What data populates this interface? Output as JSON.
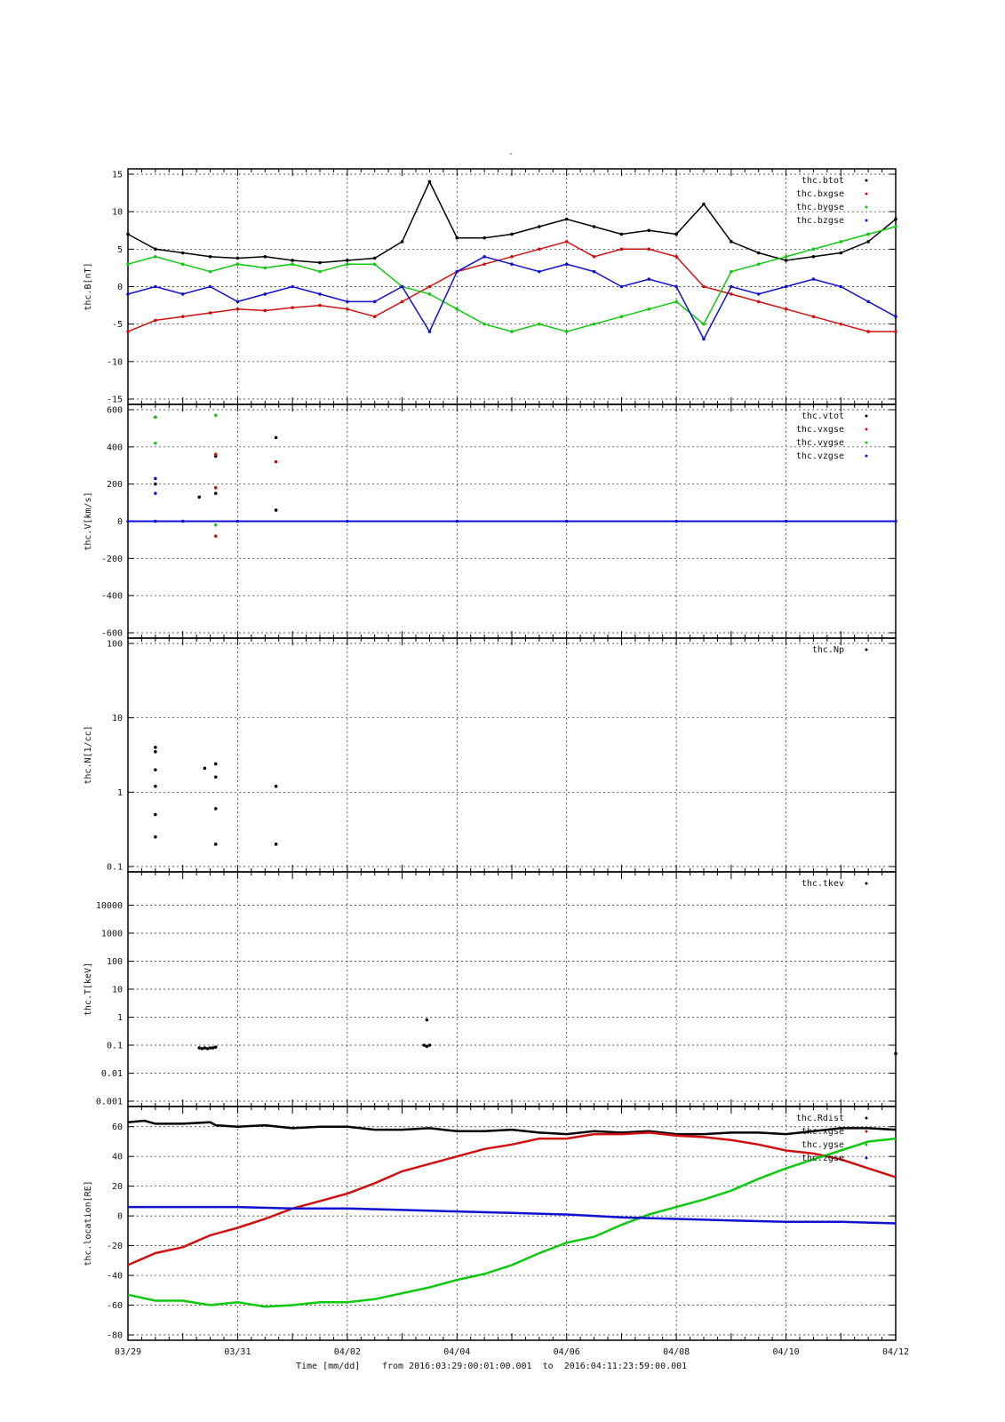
{
  "figure_title": "-",
  "footer": {
    "time_label": "Time [mm/dd]",
    "range_text": "from 2016:03:29:00:01:00.001  to  2016:04:11:23:59:00.001"
  },
  "x_axis": {
    "tick_labels": [
      "03/29",
      "03/31",
      "04/02",
      "04/04",
      "04/06",
      "04/08",
      "04/10",
      "04/12"
    ],
    "range_days": [
      0,
      14
    ]
  },
  "colors": {
    "black": "#000000",
    "red": "#d01010",
    "green": "#10c810",
    "blue": "#1010d0"
  },
  "chart_data": [
    {
      "type": "scatter",
      "ylabel": "thc.B[nT]",
      "ylim": [
        -15,
        15
      ],
      "scale": "linear",
      "yticks": [
        -15,
        -10,
        -5,
        0,
        5,
        10,
        15
      ],
      "grid": true,
      "legend_position": "top-right",
      "series": [
        {
          "name": "thc.btot",
          "color": "#000000",
          "x": [
            0,
            0.5,
            1,
            1.5,
            2,
            2.5,
            3,
            3.5,
            4,
            4.5,
            5,
            5.5,
            6,
            6.5,
            7,
            7.5,
            8,
            8.5,
            9,
            9.5,
            10,
            10.5,
            11,
            11.5,
            12,
            12.5,
            13,
            13.5,
            14
          ],
          "y": [
            7,
            5,
            4.5,
            4,
            3.8,
            4,
            3.5,
            3.2,
            3.5,
            3.8,
            6,
            14,
            6.5,
            6.5,
            7,
            8,
            9,
            8,
            7,
            7.5,
            7,
            11,
            6,
            4.5,
            3.5,
            4,
            4.5,
            6,
            9
          ]
        },
        {
          "name": "thc.bxgse",
          "color": "#d01010",
          "x": [
            0,
            0.5,
            1,
            1.5,
            2,
            2.5,
            3,
            3.5,
            4,
            4.5,
            5,
            5.5,
            6,
            6.5,
            7,
            7.5,
            8,
            8.5,
            9,
            9.5,
            10,
            10.5,
            11,
            11.5,
            12,
            12.5,
            13,
            13.5,
            14
          ],
          "y": [
            -6,
            -4.5,
            -4,
            -3.5,
            -3,
            -3.2,
            -2.8,
            -2.5,
            -3,
            -4,
            -2,
            0,
            2,
            3,
            4,
            5,
            6,
            4,
            5,
            5,
            4,
            0,
            -1,
            -2,
            -3,
            -4,
            -5,
            -6,
            -6
          ]
        },
        {
          "name": "thc.bygse",
          "color": "#10c810",
          "x": [
            0,
            0.5,
            1,
            1.5,
            2,
            2.5,
            3,
            3.5,
            4,
            4.5,
            5,
            5.5,
            6,
            6.5,
            7,
            7.5,
            8,
            8.5,
            9,
            9.5,
            10,
            10.5,
            11,
            11.5,
            12,
            12.5,
            13,
            13.5,
            14
          ],
          "y": [
            3,
            4,
            3,
            2,
            3,
            2.5,
            3,
            2,
            3,
            3,
            0,
            -1,
            -3,
            -5,
            -6,
            -5,
            -6,
            -5,
            -4,
            -3,
            -2,
            -5,
            2,
            3,
            4,
            5,
            6,
            7,
            8
          ]
        },
        {
          "name": "thc.bzgse",
          "color": "#1010d0",
          "x": [
            0,
            0.5,
            1,
            1.5,
            2,
            2.5,
            3,
            3.5,
            4,
            4.5,
            5,
            5.5,
            6,
            6.5,
            7,
            7.5,
            8,
            8.5,
            9,
            9.5,
            10,
            10.5,
            11,
            11.5,
            12,
            12.5,
            13,
            13.5,
            14
          ],
          "y": [
            -1,
            0,
            -1,
            0,
            -2,
            -1,
            0,
            -1,
            -2,
            -2,
            0,
            -6,
            2,
            4,
            3,
            2,
            3,
            2,
            0,
            1,
            0,
            -7,
            0,
            -1,
            0,
            1,
            0,
            -2,
            -4
          ]
        }
      ]
    },
    {
      "type": "scatter",
      "ylabel": "thc.V[km/s]",
      "ylim": [
        -600,
        600
      ],
      "scale": "linear",
      "yticks": [
        -600,
        -400,
        -200,
        0,
        200,
        400,
        600
      ],
      "grid": true,
      "legend_position": "top-right",
      "series": [
        {
          "name": "thc.vtot",
          "color": "#000000",
          "x": [
            0.5,
            0.5,
            1.3,
            1.6,
            1.6,
            2.7,
            2.7
          ],
          "y": [
            200,
            560,
            130,
            350,
            150,
            450,
            60
          ]
        },
        {
          "name": "thc.vxgse",
          "color": "#d01010",
          "x": [
            1.6,
            1.6,
            1.6,
            2.7
          ],
          "y": [
            360,
            180,
            -80,
            320
          ]
        },
        {
          "name": "thc.vygse",
          "color": "#10c810",
          "x": [
            0.5,
            0.5,
            1.6,
            1.6
          ],
          "y": [
            560,
            420,
            570,
            -20
          ]
        },
        {
          "name": "thc.vzgse",
          "color": "#1010d0",
          "x": [
            0,
            0.5,
            0.5,
            0.5,
            1,
            2,
            4,
            6,
            8,
            10,
            12,
            14
          ],
          "y": [
            0,
            230,
            150,
            0,
            0,
            0,
            0,
            0,
            0,
            0,
            0,
            0
          ]
        }
      ]
    },
    {
      "type": "scatter",
      "ylabel": "thc.N[1/cc]",
      "ylim": [
        0.1,
        100
      ],
      "scale": "log",
      "yticks": [
        0.1,
        1,
        10,
        100
      ],
      "ytick_labels": [
        "0.1",
        "1",
        "10",
        "100"
      ],
      "grid": true,
      "legend_position": "top-right",
      "series": [
        {
          "name": "thc.Np",
          "color": "#000000",
          "x": [
            0.5,
            0.5,
            0.5,
            0.5,
            0.5,
            0.5,
            1.4,
            1.6,
            1.6,
            1.6,
            1.6,
            2.7,
            2.7
          ],
          "y": [
            4,
            3.5,
            2,
            1.2,
            0.5,
            0.25,
            2.1,
            2.4,
            1.6,
            0.6,
            0.2,
            1.2,
            0.2
          ]
        }
      ]
    },
    {
      "type": "scatter",
      "ylabel": "thc.T[keV]",
      "ylim": [
        0.001,
        100000
      ],
      "scale": "log",
      "yticks": [
        0.001,
        0.01,
        0.1,
        1,
        10,
        100,
        1000,
        10000
      ],
      "ytick_labels": [
        "0.001",
        "0.01",
        "0.1",
        "1",
        "10",
        "100",
        "1000",
        "10000"
      ],
      "grid": true,
      "legend_position": "top-right",
      "series": [
        {
          "name": "thc.tkev",
          "color": "#000000",
          "x": [
            1.3,
            1.35,
            1.4,
            1.45,
            1.5,
            1.55,
            1.6,
            5.4,
            5.45,
            5.5,
            5.45,
            14
          ],
          "y": [
            0.08,
            0.075,
            0.08,
            0.075,
            0.08,
            0.08,
            0.085,
            0.1,
            0.09,
            0.1,
            0.8,
            0.05
          ]
        }
      ]
    },
    {
      "type": "line",
      "ylabel": "thc.location[RE]",
      "ylim": [
        -80,
        70
      ],
      "scale": "linear",
      "yticks": [
        -80,
        -60,
        -40,
        -20,
        0,
        20,
        40,
        60
      ],
      "grid": true,
      "legend_position": "top-right",
      "series": [
        {
          "name": "thc.Rdist",
          "color": "#000000",
          "x": [
            0,
            0.3,
            0.5,
            1,
            1.5,
            1.6,
            2,
            2.5,
            3,
            3.5,
            4,
            4.5,
            5,
            5.5,
            6,
            6.5,
            7,
            7.5,
            8,
            8.5,
            9,
            9.5,
            10,
            10.5,
            11,
            11.5,
            12,
            12.5,
            13,
            13.5,
            14
          ],
          "y": [
            63,
            64,
            62,
            62,
            63,
            61,
            60,
            61,
            59,
            60,
            60,
            58,
            58,
            59,
            57,
            57,
            58,
            56,
            55,
            57,
            56,
            57,
            55,
            55,
            56,
            56,
            55,
            57,
            59,
            59,
            58
          ]
        },
        {
          "name": "thc.xgse",
          "color": "#d01010",
          "x": [
            0,
            0.5,
            1,
            1.5,
            2,
            2.5,
            3,
            3.5,
            4,
            4.5,
            5,
            5.5,
            6,
            6.5,
            7,
            7.5,
            8,
            8.5,
            9,
            9.5,
            10,
            10.5,
            11,
            11.5,
            12,
            12.5,
            13,
            13.5,
            14
          ],
          "y": [
            -33,
            -25,
            -21,
            -13,
            -8,
            -2,
            5,
            10,
            15,
            22,
            30,
            35,
            40,
            45,
            48,
            52,
            52,
            55,
            55,
            56,
            54,
            53,
            51,
            48,
            44,
            42,
            38,
            32,
            26
          ]
        },
        {
          "name": "thc.ygse",
          "color": "#10c810",
          "x": [
            0,
            0.5,
            1,
            1.5,
            2,
            2.5,
            3,
            3.5,
            4,
            4.5,
            5,
            5.5,
            6,
            6.5,
            7,
            7.5,
            8,
            8.5,
            9,
            9.5,
            10,
            10.5,
            11,
            11.5,
            12,
            12.5,
            13,
            13.5,
            14
          ],
          "y": [
            -53,
            -57,
            -57,
            -60,
            -58,
            -61,
            -60,
            -58,
            -58,
            -56,
            -52,
            -48,
            -43,
            -39,
            -33,
            -25,
            -18,
            -14,
            -6,
            1,
            6,
            11,
            17,
            25,
            32,
            38,
            44,
            50,
            52
          ]
        },
        {
          "name": "thc.zgse",
          "color": "#1010d0",
          "x": [
            0,
            1,
            2,
            3,
            4,
            5,
            6,
            7,
            8,
            9,
            10,
            11,
            12,
            13,
            14
          ],
          "y": [
            6,
            6,
            6,
            5,
            5,
            4,
            3,
            2,
            1,
            -1,
            -2,
            -3,
            -4,
            -4,
            -5
          ]
        }
      ]
    }
  ]
}
